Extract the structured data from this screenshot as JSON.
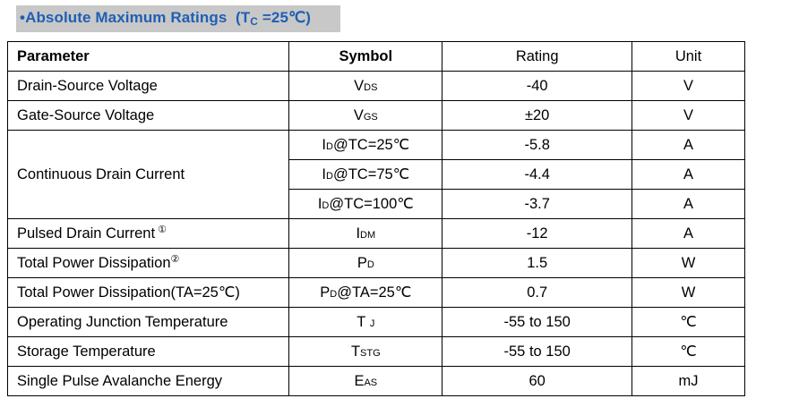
{
  "title": {
    "bullet": "•",
    "main": "Absolute Maximum Ratings",
    "cond_open": "(T",
    "cond_sub": "C",
    "cond_close": "=25℃)"
  },
  "headers": {
    "parameter": "Parameter",
    "symbol": "Symbol",
    "rating": "Rating",
    "unit": "Unit"
  },
  "rows": [
    {
      "parameter": "Drain-Source Voltage",
      "sym_main": "V",
      "sym_sub": "DS",
      "sym_suffix": "",
      "rating": "-40",
      "unit": "V"
    },
    {
      "parameter": "Gate-Source Voltage",
      "sym_main": "V",
      "sym_sub": "GS",
      "sym_suffix": "",
      "rating": "±20",
      "unit": "V"
    },
    {
      "parameter": "Continuous Drain Current",
      "sym_main": "I",
      "sym_sub": "D",
      "sym_suffix": "@TC=25℃",
      "rating": "-5.8",
      "unit": "A"
    },
    {
      "parameter": "",
      "sym_main": "I",
      "sym_sub": "D",
      "sym_suffix": "@TC=75℃",
      "rating": "-4.4",
      "unit": "A"
    },
    {
      "parameter": "",
      "sym_main": "I",
      "sym_sub": "D",
      "sym_suffix": "@TC=100℃",
      "rating": "-3.7",
      "unit": "A"
    },
    {
      "parameter": "Pulsed Drain Current",
      "param_note": "①",
      "sym_main": "I",
      "sym_sub": "DM",
      "sym_suffix": "",
      "rating": "-12",
      "unit": "A"
    },
    {
      "parameter": "Total Power Dissipation",
      "param_note": "②",
      "sym_main": "P",
      "sym_sub": "D",
      "sym_suffix": "",
      "rating": "1.5",
      "unit": "W"
    },
    {
      "parameter": "Total Power Dissipation(TA=25℃)",
      "sym_main": "P",
      "sym_sub": "D",
      "sym_suffix": "@TA=25℃",
      "rating": "0.7",
      "unit": "W"
    },
    {
      "parameter": "Operating Junction Temperature",
      "sym_main": "T",
      "sym_sub": "J",
      "sym_suffix": "",
      "rating": "-55 to 150",
      "unit": "℃"
    },
    {
      "parameter": "Storage Temperature",
      "sym_main": "T",
      "sym_sub": "STG",
      "sym_suffix": "",
      "rating": "-55 to 150",
      "unit": "℃"
    },
    {
      "parameter": "Single Pulse Avalanche Energy",
      "sym_main": "E",
      "sym_sub": "AS",
      "sym_suffix": "",
      "rating": "60",
      "unit": "mJ"
    }
  ]
}
